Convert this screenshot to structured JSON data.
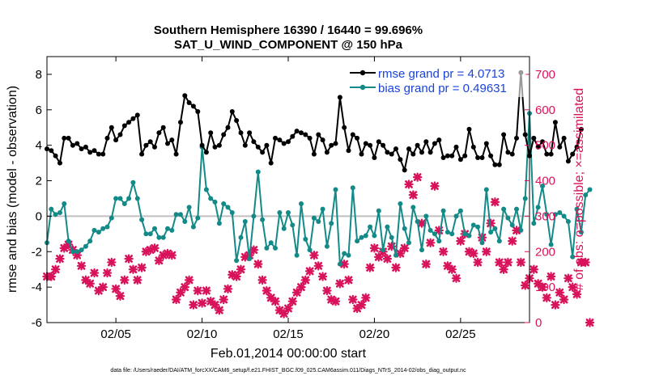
{
  "chart_data": {
    "type": "line",
    "title": "Southern Hemisphere 16390 / 16440 = 99.696%",
    "subtitle": "SAT_U_WIND_COMPONENT @ 150 hPa",
    "xlabel": "Feb.01,2014 00:00:00 start",
    "ylabel": "rmse and bias (model - observation)",
    "ylabel_right": "# of obs: o=possible; ×=assimilated",
    "footnote": "data file: /Users/raeder/DAI/ATM_forcXX/CAM6_setup/f.e21.FHIST_BGC.f09_025.CAM6assim.011/Diags_NTrS_2014-02/obs_diag_output.nc",
    "xlim": [
      1,
      29
    ],
    "ylim": [
      -6,
      9
    ],
    "ylim_right": [
      0,
      750
    ],
    "x_ticks": [
      5,
      10,
      15,
      20,
      25
    ],
    "x_tick_labels": [
      "02/05",
      "02/10",
      "02/15",
      "02/20",
      "02/25"
    ],
    "y_ticks": [
      -6,
      -4,
      -2,
      0,
      2,
      4,
      6,
      8
    ],
    "y_tick_labels": [
      "-6",
      "-4",
      "-2",
      "0",
      "2",
      "4",
      "6",
      "8"
    ],
    "y_right_ticks": [
      0,
      100,
      200,
      300,
      400,
      500,
      600,
      700
    ],
    "y_right_tick_labels": [
      "0",
      "100",
      "200",
      "300",
      "400",
      "500",
      "600",
      "700"
    ],
    "colors": {
      "rmse": "#000000",
      "bias": "#138a87",
      "obs": "#d8135b",
      "zero_line": "#c0c0c0",
      "legend_text": "#1a44d9"
    },
    "legend": {
      "position": "top-right",
      "entries": [
        "rmse grand pr = 4.0713",
        "bias grand pr = 0.49631"
      ]
    },
    "series": [
      {
        "name": "rmse",
        "step": 0.25,
        "start": 1,
        "values": [
          3.8,
          3.7,
          3.4,
          3.0,
          4.4,
          4.4,
          4.0,
          4.1,
          3.8,
          3.9,
          3.6,
          3.7,
          3.5,
          3.5,
          4.4,
          5.0,
          4.3,
          4.6,
          5.1,
          5.3,
          5.5,
          5.7,
          3.5,
          4.0,
          4.2,
          3.9,
          4.7,
          5.0,
          4.1,
          4.3,
          3.5,
          5.3,
          6.8,
          6.4,
          6.2,
          5.9,
          4.0,
          3.6,
          4.7,
          3.9,
          4.0,
          4.6,
          5.0,
          5.9,
          5.4,
          4.7,
          4.0,
          4.7,
          4.2,
          3.9,
          3.6,
          4.0,
          3.0,
          4.4,
          4.3,
          4.1,
          4.2,
          4.5,
          4.8,
          4.7,
          4.6,
          4.4,
          3.5,
          4.6,
          4.3,
          3.6,
          4.0,
          4.1,
          6.7,
          5.0,
          3.7,
          4.6,
          4.4,
          3.5,
          4.1,
          4.0,
          3.3,
          4.2,
          4.0,
          3.6,
          3.5,
          3.8,
          3.2,
          2.6,
          3.8,
          3.5,
          4.0,
          3.6,
          4.2,
          3.6,
          4.1,
          4.3,
          3.3,
          3.4,
          3.4,
          3.9,
          3.2,
          3.4,
          4.9,
          3.9,
          3.3,
          3.3,
          4.1,
          3.4,
          2.9,
          2.9,
          4.6,
          3.6,
          3.5,
          4.4,
          8.1,
          4.6,
          3.4,
          4.4,
          3.9,
          4.2,
          3.5,
          3.5,
          5.3,
          3.9,
          4.4,
          3.1,
          3.5,
          3.9,
          4.9
        ],
        "color": "#000000"
      },
      {
        "name": "bias",
        "step": 0.25,
        "start": 1,
        "values": [
          -1.5,
          0.4,
          0.1,
          0.2,
          0.7,
          -1.4,
          -2.0,
          -2.0,
          -1.9,
          -1.7,
          -1.4,
          -0.8,
          -0.9,
          -0.7,
          -0.6,
          -0.1,
          1.0,
          1.0,
          0.7,
          1.0,
          1.9,
          1.0,
          -0.2,
          -1.0,
          -1.0,
          -0.7,
          -1.2,
          -1.2,
          -0.7,
          -0.8,
          0.1,
          0.1,
          -0.3,
          0.5,
          -0.6,
          -0.1,
          3.9,
          1.5,
          1.0,
          0.8,
          -0.4,
          0.7,
          0.5,
          0.2,
          -2.5,
          -1.2,
          -0.3,
          -2.4,
          0.0,
          2.5,
          -0.2,
          -1.8,
          -1.5,
          -1.8,
          0.2,
          -0.7,
          0.2,
          -0.5,
          -2.2,
          0.7,
          -1.3,
          -1.9,
          -0.1,
          -0.3,
          0.4,
          -1.7,
          -0.4,
          1.5,
          -2.7,
          -2.1,
          -2.2,
          1.6,
          -1.4,
          -1.2,
          -1.1,
          -0.6,
          -1.1,
          0.3,
          -1.9,
          -0.6,
          -1.2,
          -2.2,
          0.7,
          -0.7,
          -1.5,
          0.5,
          -0.3,
          -1.9,
          0.0,
          -0.8,
          -1.0,
          -1.4,
          0.3,
          -0.9,
          -1.0,
          0.0,
          0.3,
          -1.0,
          -1.1,
          -0.5,
          -0.6,
          -1.5,
          1.5,
          -0.9,
          -0.7,
          -1.4,
          0.4,
          -0.1,
          -0.5,
          0.4,
          -0.8,
          1.0,
          5.8,
          -0.4,
          0.5,
          1.7,
          0.1,
          -1.6,
          0.1,
          0.2,
          0.0,
          -0.3,
          -2.3,
          0.4,
          -0.9,
          1.2,
          1.5
        ],
        "color": "#138a87"
      },
      {
        "name": "obs_assimilated",
        "step": 0.25,
        "start": 1,
        "values": [
          130,
          130,
          150,
          180,
          210,
          220,
          205,
          190,
          160,
          120,
          110,
          140,
          90,
          100,
          140,
          170,
          95,
          75,
          120,
          180,
          150,
          120,
          155,
          200,
          205,
          210,
          175,
          190,
          195,
          190,
          65,
          85,
          100,
          120,
          50,
          90,
          55,
          90,
          60,
          50,
          35,
          65,
          95,
          135,
          130,
          150,
          185,
          190,
          205,
          165,
          120,
          90,
          70,
          60,
          35,
          25,
          40,
          60,
          85,
          100,
          120,
          145,
          190,
          160,
          130,
          90,
          65,
          60,
          110,
          165,
          120,
          65,
          40,
          50,
          70,
          155,
          210,
          185,
          200,
          180,
          215,
          155,
          195,
          210,
          390,
          360,
          410,
          280,
          165,
          225,
          385,
          260,
          200,
          160,
          150,
          125,
          230,
          250,
          200,
          195,
          170,
          240,
          200,
          280,
          340,
          170,
          150,
          170,
          230,
          260,
          170,
          105,
          125,
          150,
          110,
          100,
          70,
          130,
          50,
          85,
          65,
          125,
          100,
          80,
          170,
          170,
          0
        ],
        "color": "#d8135b"
      }
    ]
  }
}
